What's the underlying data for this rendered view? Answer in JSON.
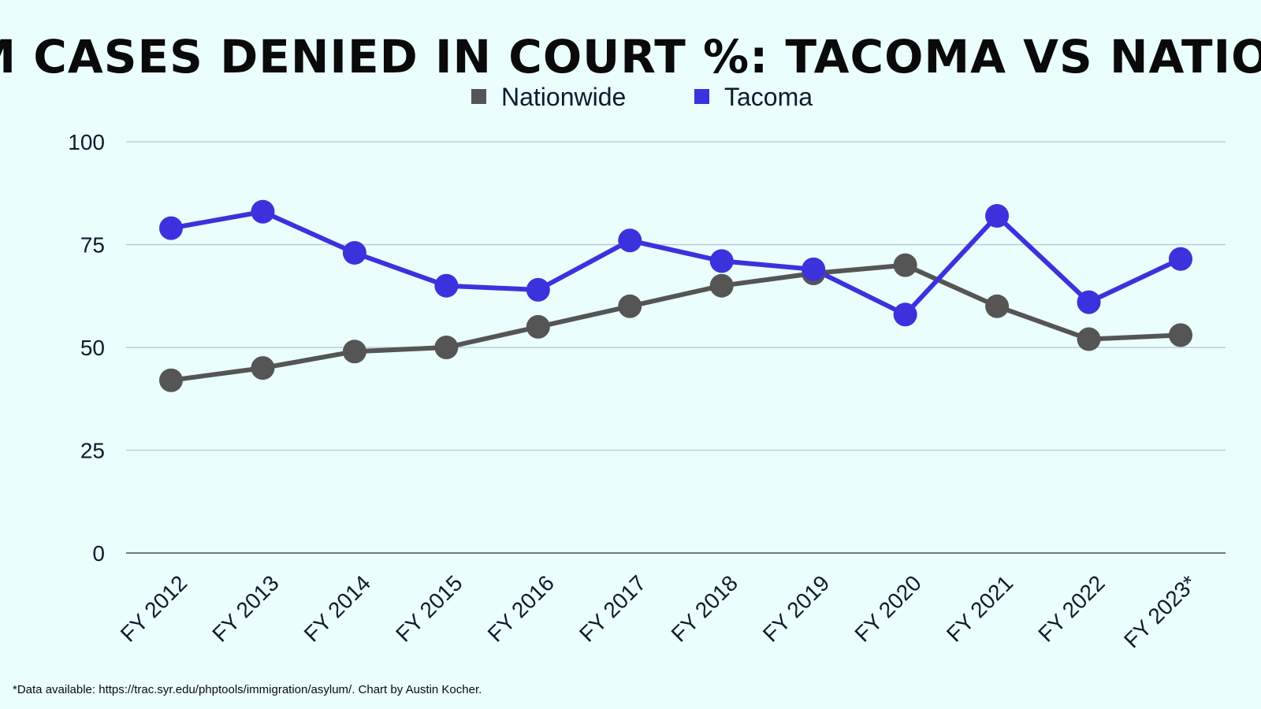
{
  "chart_data": {
    "type": "line",
    "title": "ASYLUM CASES DENIED IN COURT %: TACOMA VS NATIONWIDE",
    "xlabel": "",
    "ylabel": "",
    "ylim": [
      0,
      100
    ],
    "yticks": [
      "0",
      "25",
      "50",
      "75",
      "100"
    ],
    "categories": [
      "FY 2012",
      "FY 2013",
      "FY 2014",
      "FY 2015",
      "FY 2016",
      "FY 2017",
      "FY 2018",
      "FY 2019",
      "FY 2020",
      "FY 2021",
      "FY 2022",
      "FY 2023*"
    ],
    "series": [
      {
        "name": "Nationwide",
        "color": "#555555",
        "values": [
          42,
          45,
          49,
          50,
          55,
          60,
          65,
          68,
          70,
          60,
          52,
          53
        ]
      },
      {
        "name": "Tacoma",
        "color": "#3c31dd",
        "values": [
          79,
          83,
          73,
          65,
          64,
          76,
          71,
          69,
          58,
          82,
          61,
          71.5
        ]
      }
    ],
    "grid": true,
    "legend_position": "top-center",
    "footnote": "*Data available: https://trac.syr.edu/phptools/immigration/asylum/. Chart by Austin Kocher."
  }
}
